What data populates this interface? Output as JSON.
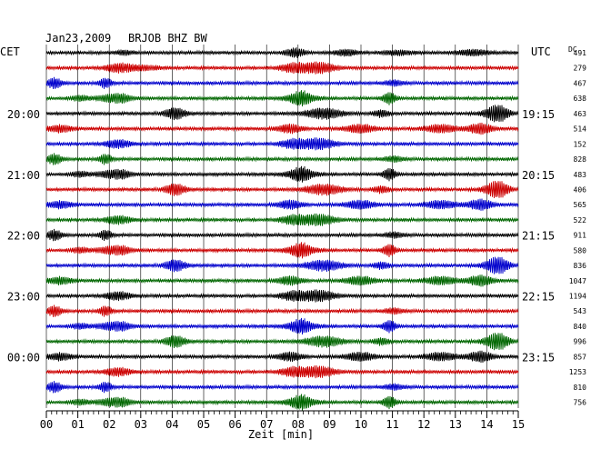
{
  "header": {
    "date": "Jan23,2009",
    "station": "BRJOB BHZ BW",
    "left_tz": "CET",
    "right_tz": "UTC",
    "dc_label": "DC"
  },
  "chart_data": {
    "type": "line",
    "description_kind": "helicorder",
    "xlabel": "Zeit [min]",
    "x_ticks": [
      "00",
      "01",
      "02",
      "03",
      "04",
      "05",
      "06",
      "07",
      "08",
      "09",
      "10",
      "11",
      "12",
      "13",
      "14",
      "15"
    ],
    "xlim": [
      0,
      15
    ],
    "left_hour_labels": [
      {
        "row": 4,
        "text": "20:00"
      },
      {
        "row": 8,
        "text": "21:00"
      },
      {
        "row": 12,
        "text": "22:00"
      },
      {
        "row": 16,
        "text": "23:00"
      },
      {
        "row": 20,
        "text": "00:00"
      }
    ],
    "right_hour_labels": [
      {
        "row": 4,
        "text": "19:15"
      },
      {
        "row": 8,
        "text": "20:15"
      },
      {
        "row": 12,
        "text": "21:15"
      },
      {
        "row": 16,
        "text": "22:15"
      },
      {
        "row": 20,
        "text": "23:15"
      }
    ],
    "dc_values": [
      "491",
      "279",
      "467",
      "638",
      "463",
      "514",
      "152",
      "828",
      "483",
      "406",
      "565",
      "522",
      "911",
      "580",
      "836",
      "1047",
      "1194",
      "543",
      "840",
      "996",
      "857",
      "1253",
      "810",
      "756"
    ],
    "trace_colors": [
      "#000000",
      "#cc0000",
      "#0000cc",
      "#006600"
    ]
  }
}
